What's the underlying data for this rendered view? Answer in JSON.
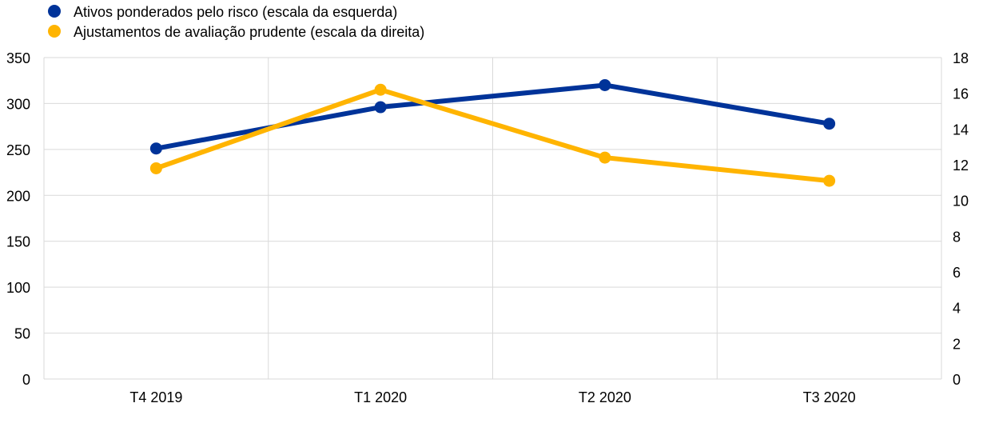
{
  "chart_data": {
    "type": "line",
    "categories": [
      "T4 2019",
      "T1 2020",
      "T2 2020",
      "T3 2020"
    ],
    "series": [
      {
        "name": "Ativos ponderados pelo risco (escala da esquerda)",
        "axis": "left",
        "color": "#003399",
        "values": [
          251,
          296,
          320,
          278
        ]
      },
      {
        "name": "Ajustamentos de avaliação prudente (escala da direita)",
        "axis": "right",
        "color": "#FFB400",
        "values": [
          11.8,
          16.2,
          12.4,
          11.1
        ]
      }
    ],
    "left_axis": {
      "range": [
        0,
        350
      ],
      "ticks": [
        "0",
        "50",
        "100",
        "150",
        "200",
        "250",
        "300",
        "350"
      ]
    },
    "right_axis": {
      "range": [
        0,
        18
      ],
      "ticks": [
        "0",
        "2",
        "4",
        "6",
        "8",
        "10",
        "12",
        "14",
        "16",
        "18"
      ]
    },
    "grid": true,
    "legend_position": "top-left"
  }
}
